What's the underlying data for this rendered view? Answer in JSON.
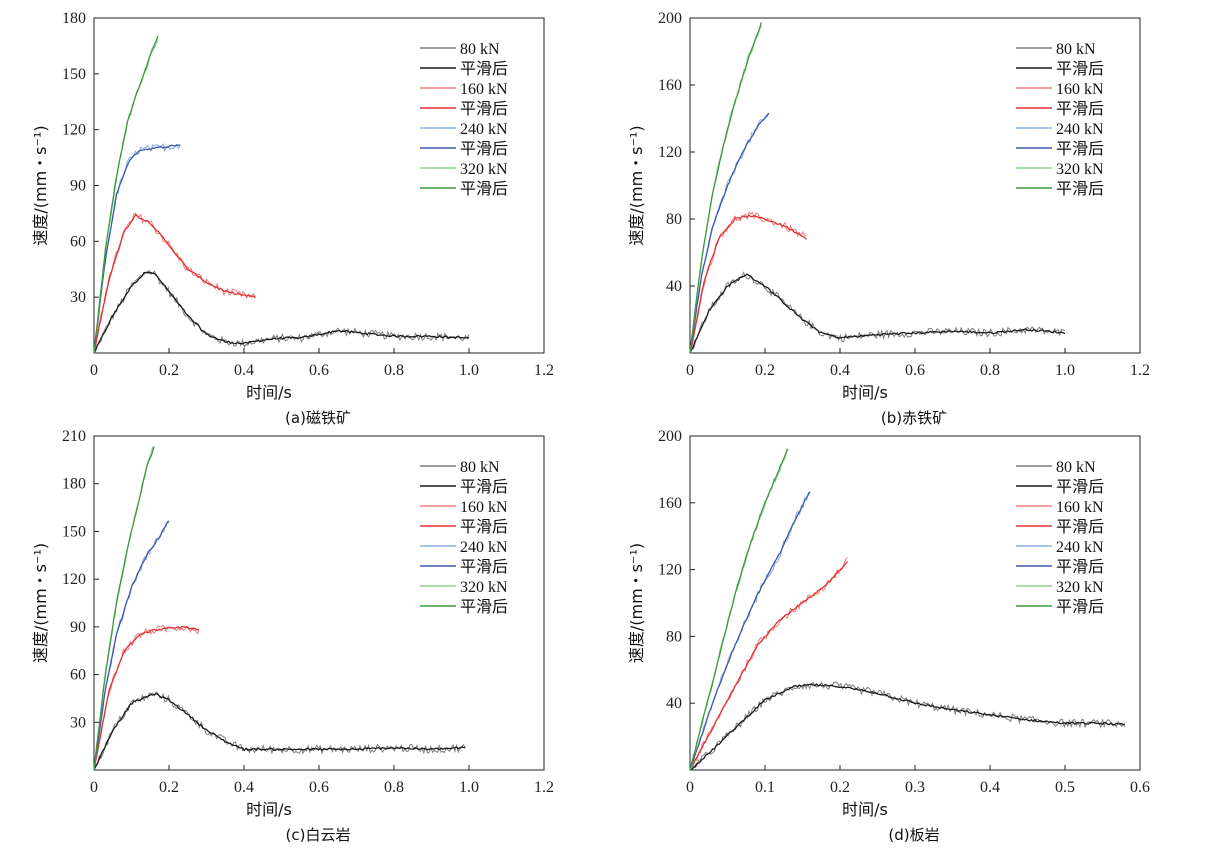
{
  "chart_data": [
    {
      "type": "line",
      "caption": "(a)磁铁矿",
      "xlabel": "时间/s",
      "ylabel": "速度/(mm・s⁻¹)",
      "xlim": [
        0,
        1.2
      ],
      "ylim": [
        0,
        180
      ],
      "xticks": [
        0,
        0.2,
        0.4,
        0.6,
        0.8,
        1.0,
        1.2
      ],
      "xtick_labels": [
        "0",
        "0.2",
        "0.4",
        "0.6",
        "0.8",
        "1.0",
        "1.2"
      ],
      "yticks": [
        30,
        60,
        90,
        120,
        150,
        180
      ],
      "ytick_labels": [
        "30",
        "60",
        "90",
        "120",
        "150",
        "180"
      ],
      "legend_position": "top-right",
      "legend": [
        "80 kN",
        "平滑后",
        "160 kN",
        "平滑后",
        "240 kN",
        "平滑后",
        "320 kN",
        "平滑后"
      ],
      "series": [
        {
          "name": "80 kN",
          "color": "#7f7f7f",
          "smooth_color": "#1a1a1a",
          "x": [
            0,
            0.05,
            0.1,
            0.14,
            0.16,
            0.2,
            0.25,
            0.3,
            0.35,
            0.4,
            0.45,
            0.5,
            0.55,
            0.6,
            0.65,
            0.7,
            0.8,
            0.9,
            1.0
          ],
          "y": [
            0,
            20,
            36,
            44,
            43,
            33,
            20,
            10,
            6,
            5,
            7,
            8,
            8,
            10,
            12,
            11,
            9,
            9,
            8
          ]
        },
        {
          "name": "160 kN",
          "color": "#f08080",
          "smooth_color": "#e03030",
          "x": [
            0,
            0.04,
            0.08,
            0.11,
            0.15,
            0.2,
            0.25,
            0.3,
            0.35,
            0.4,
            0.43
          ],
          "y": [
            0,
            40,
            65,
            74,
            70,
            58,
            45,
            38,
            33,
            31,
            30
          ]
        },
        {
          "name": "240 kN",
          "color": "#8ab0e0",
          "smooth_color": "#3a58b0",
          "x": [
            0,
            0.03,
            0.06,
            0.09,
            0.12,
            0.16,
            0.2,
            0.23
          ],
          "y": [
            0,
            50,
            85,
            102,
            109,
            110,
            111,
            112
          ]
        },
        {
          "name": "320 kN",
          "color": "#90d090",
          "smooth_color": "#3a9a3a",
          "x": [
            0,
            0.03,
            0.06,
            0.09,
            0.12,
            0.15,
            0.17
          ],
          "y": [
            0,
            55,
            95,
            125,
            143,
            160,
            170
          ]
        }
      ]
    },
    {
      "type": "line",
      "caption": "(b)赤铁矿",
      "xlabel": "时间/s",
      "ylabel": "速度/(mm・s⁻¹)",
      "xlim": [
        0,
        1.2
      ],
      "ylim": [
        0,
        200
      ],
      "xticks": [
        0,
        0.2,
        0.4,
        0.6,
        0.8,
        1.0,
        1.2
      ],
      "xtick_labels": [
        "0",
        "0.2",
        "0.4",
        "0.6",
        "0.8",
        "1.0",
        "1.2"
      ],
      "yticks": [
        40,
        80,
        120,
        160,
        200
      ],
      "ytick_labels": [
        "40",
        "80",
        "120",
        "160",
        "200"
      ],
      "legend_position": "top-right",
      "legend": [
        "80 kN",
        "平滑后",
        "160 kN",
        "平滑后",
        "240 kN",
        "平滑后",
        "320 kN",
        "平滑后"
      ],
      "series": [
        {
          "name": "80 kN",
          "color": "#7f7f7f",
          "smooth_color": "#1a1a1a",
          "x": [
            0,
            0.05,
            0.1,
            0.15,
            0.2,
            0.25,
            0.3,
            0.35,
            0.4,
            0.5,
            0.6,
            0.7,
            0.8,
            0.9,
            1.0
          ],
          "y": [
            0,
            25,
            40,
            47,
            40,
            30,
            20,
            12,
            9,
            11,
            12,
            13,
            12,
            14,
            12
          ]
        },
        {
          "name": "160 kN",
          "color": "#f08080",
          "smooth_color": "#e03030",
          "x": [
            0,
            0.04,
            0.08,
            0.12,
            0.16,
            0.2,
            0.25,
            0.3,
            0.31
          ],
          "y": [
            0,
            45,
            70,
            80,
            82,
            80,
            76,
            70,
            68
          ]
        },
        {
          "name": "240 kN",
          "color": "#8ab0e0",
          "smooth_color": "#3a58b0",
          "x": [
            0,
            0.03,
            0.06,
            0.1,
            0.14,
            0.18,
            0.21
          ],
          "y": [
            0,
            45,
            75,
            100,
            120,
            135,
            143
          ]
        },
        {
          "name": "320 kN",
          "color": "#90d090",
          "smooth_color": "#3a9a3a",
          "x": [
            0,
            0.03,
            0.06,
            0.09,
            0.12,
            0.15,
            0.19
          ],
          "y": [
            0,
            55,
            95,
            125,
            150,
            172,
            197
          ]
        }
      ]
    },
    {
      "type": "line",
      "caption": "(c)白云岩",
      "xlabel": "时间/s",
      "ylabel": "速度/(mm・s⁻¹)",
      "xlim": [
        0,
        1.2
      ],
      "ylim": [
        0,
        210
      ],
      "xticks": [
        0,
        0.2,
        0.4,
        0.6,
        0.8,
        1.0,
        1.2
      ],
      "xtick_labels": [
        "0",
        "0.2",
        "0.4",
        "0.6",
        "0.8",
        "1.0",
        "1.2"
      ],
      "yticks": [
        30,
        60,
        90,
        120,
        150,
        180,
        210
      ],
      "ytick_labels": [
        "30",
        "60",
        "90",
        "120",
        "150",
        "180",
        "210"
      ],
      "legend_position": "top-right",
      "legend": [
        "80 kN",
        "平滑后",
        "160 kN",
        "平滑后",
        "240 kN",
        "平滑后",
        "320 kN",
        "平滑后"
      ],
      "series": [
        {
          "name": "80 kN",
          "color": "#7f7f7f",
          "smooth_color": "#1a1a1a",
          "x": [
            0,
            0.05,
            0.1,
            0.16,
            0.2,
            0.25,
            0.3,
            0.35,
            0.4,
            0.5,
            0.6,
            0.7,
            0.8,
            0.9,
            0.99
          ],
          "y": [
            0,
            25,
            42,
            48,
            44,
            35,
            25,
            18,
            13,
            13,
            13,
            13,
            14,
            13,
            14
          ]
        },
        {
          "name": "160 kN",
          "color": "#f08080",
          "smooth_color": "#e03030",
          "x": [
            0,
            0.04,
            0.08,
            0.12,
            0.16,
            0.2,
            0.24,
            0.28
          ],
          "y": [
            0,
            50,
            75,
            85,
            88,
            89,
            90,
            88
          ]
        },
        {
          "name": "240 kN",
          "color": "#8ab0e0",
          "smooth_color": "#3a58b0",
          "x": [
            0,
            0.03,
            0.06,
            0.1,
            0.14,
            0.17,
            0.2
          ],
          "y": [
            0,
            50,
            85,
            115,
            135,
            145,
            157
          ]
        },
        {
          "name": "320 kN",
          "color": "#90d090",
          "smooth_color": "#3a9a3a",
          "x": [
            0,
            0.03,
            0.06,
            0.09,
            0.12,
            0.14,
            0.16
          ],
          "y": [
            0,
            60,
            105,
            140,
            170,
            190,
            203
          ]
        }
      ]
    },
    {
      "type": "line",
      "caption": "(d)板岩",
      "xlabel": "时间/s",
      "ylabel": "速度/(mm・s⁻¹)",
      "xlim": [
        0,
        0.6
      ],
      "ylim": [
        0,
        200
      ],
      "xticks": [
        0,
        0.1,
        0.2,
        0.3,
        0.4,
        0.5,
        0.6
      ],
      "xtick_labels": [
        "0",
        "0.1",
        "0.2",
        "0.3",
        "0.4",
        "0.5",
        "0.6"
      ],
      "yticks": [
        40,
        80,
        120,
        160,
        200
      ],
      "ytick_labels": [
        "40",
        "80",
        "120",
        "160",
        "200"
      ],
      "legend_position": "top-right",
      "legend": [
        "80 kN",
        "平滑后",
        "160 kN",
        "平滑后",
        "240 kN",
        "平滑后",
        "320 kN",
        "平滑后"
      ],
      "series": [
        {
          "name": "80 kN",
          "color": "#7f7f7f",
          "smooth_color": "#1a1a1a",
          "x": [
            0,
            0.03,
            0.06,
            0.1,
            0.14,
            0.16,
            0.2,
            0.25,
            0.3,
            0.35,
            0.4,
            0.45,
            0.5,
            0.55,
            0.58
          ],
          "y": [
            0,
            12,
            25,
            42,
            50,
            51,
            50,
            46,
            40,
            36,
            33,
            30,
            28,
            28,
            27
          ]
        },
        {
          "name": "160 kN",
          "color": "#f08080",
          "smooth_color": "#e03030",
          "x": [
            0,
            0.03,
            0.06,
            0.09,
            0.12,
            0.15,
            0.18,
            0.21
          ],
          "y": [
            0,
            25,
            50,
            75,
            90,
            100,
            110,
            125
          ]
        },
        {
          "name": "240 kN",
          "color": "#8ab0e0",
          "smooth_color": "#3a58b0",
          "x": [
            0,
            0.03,
            0.06,
            0.09,
            0.12,
            0.14,
            0.16
          ],
          "y": [
            0,
            40,
            75,
            105,
            130,
            150,
            167
          ]
        },
        {
          "name": "320 kN",
          "color": "#90d090",
          "smooth_color": "#3a9a3a",
          "x": [
            0,
            0.02,
            0.04,
            0.06,
            0.08,
            0.1,
            0.13
          ],
          "y": [
            0,
            35,
            70,
            105,
            135,
            160,
            192
          ]
        }
      ]
    }
  ]
}
